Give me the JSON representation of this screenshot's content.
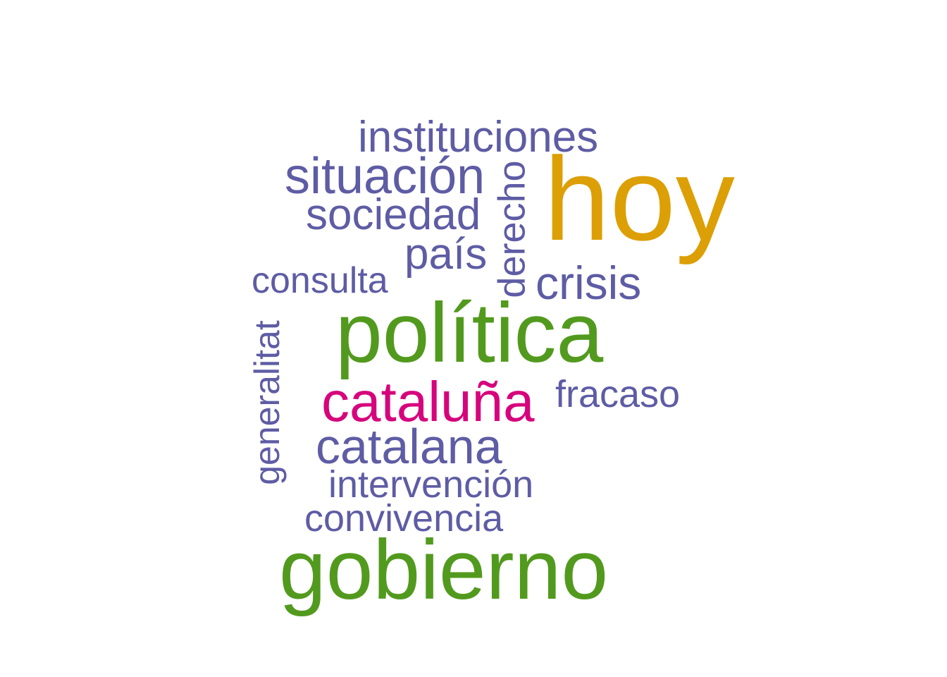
{
  "word_cloud": {
    "words": [
      {
        "text": "instituciones",
        "color": "#5e5ca4"
      },
      {
        "text": "situación",
        "color": "#5e5ca4"
      },
      {
        "text": "sociedad",
        "color": "#5e5ca4"
      },
      {
        "text": "país",
        "color": "#5e5ca4"
      },
      {
        "text": "consulta",
        "color": "#5e5ca4"
      },
      {
        "text": "hoy",
        "color": "#dc9f05"
      },
      {
        "text": "crisis",
        "color": "#5e5ca4"
      },
      {
        "text": "derecho",
        "color": "#5e5ca4",
        "orientation": "vertical"
      },
      {
        "text": "política",
        "color": "#529a1e"
      },
      {
        "text": "generalitat",
        "color": "#5e5ca4",
        "orientation": "vertical"
      },
      {
        "text": "cataluña",
        "color": "#d6047c"
      },
      {
        "text": "fracaso",
        "color": "#5e5ca4"
      },
      {
        "text": "catalana",
        "color": "#5e5ca4"
      },
      {
        "text": "intervención",
        "color": "#5e5ca4"
      },
      {
        "text": "convivencia",
        "color": "#5e5ca4"
      },
      {
        "text": "gobierno",
        "color": "#529a1e"
      }
    ]
  }
}
